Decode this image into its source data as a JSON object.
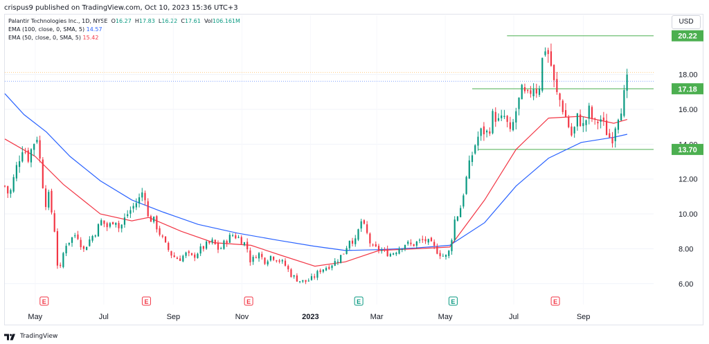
{
  "publisher": "crispus9 published on TradingView.com, Oct 10, 2023 15:36 UTC+3",
  "legend": {
    "title": "Palantir Technologies Inc., 1D, NYSE",
    "o_label": "O",
    "o_value": "16.27",
    "h_label": "H",
    "h_value": "17.83",
    "l_label": "L",
    "l_value": "16.22",
    "c_label": "C",
    "c_value": "17.61",
    "vol_label": "Vol",
    "vol_value": "106.161M",
    "ema100_label": "EMA (100, close, 0, SMA, 5)",
    "ema100_value": "14.57",
    "ema50_label": "EMA (50, close, 0, SMA, 5)",
    "ema50_value": "15.42"
  },
  "currency": "USD",
  "footer": {
    "logo_text": "TradingView"
  },
  "colors": {
    "up": "#089981",
    "down": "#f23645",
    "ema100": "#2962ff",
    "ema50": "#f23645",
    "level": "#4caf50",
    "earnings_up": "#089981",
    "earnings_down": "#f23645"
  },
  "chart_data": {
    "type": "candlestick",
    "y_axis": {
      "ticks": [
        6,
        8,
        10,
        12,
        14,
        16,
        18
      ],
      "tick_labels": [
        "6.00",
        "8.00",
        "10.00",
        "12.00",
        "14.00",
        "16.00",
        "18.00"
      ],
      "ylim": [
        4.8,
        21.4
      ]
    },
    "x_axis": {
      "labels": [
        "May",
        "Jul",
        "Sep",
        "Nov",
        "2023",
        "Mar",
        "May",
        "Jul",
        "Sep"
      ],
      "label_dates": [
        "2022-05-01",
        "2022-07-01",
        "2022-09-01",
        "2022-11-01",
        "2023-01-01",
        "2023-03-01",
        "2023-05-01",
        "2023-07-01",
        "2023-09-01"
      ],
      "range": [
        "2022-04-04",
        "2023-10-31"
      ]
    },
    "current_price": 17.61,
    "levels": [
      {
        "value": 20.22,
        "label": "20.22",
        "from": "2023-06-25",
        "to": "2023-10-31"
      },
      {
        "value": 17.18,
        "label": "17.18",
        "from": "2023-05-25",
        "to": "2023-10-31"
      },
      {
        "value": 13.7,
        "label": "13.70",
        "from": "2023-05-30",
        "to": "2023-10-31"
      }
    ],
    "earnings": [
      {
        "date": "2022-05-09",
        "label": "E",
        "type": "down"
      },
      {
        "date": "2022-08-08",
        "label": "E",
        "type": "down"
      },
      {
        "date": "2022-11-07",
        "label": "E",
        "type": "down"
      },
      {
        "date": "2023-02-13",
        "label": "E",
        "type": "up"
      },
      {
        "date": "2023-05-08",
        "label": "E",
        "type": "up"
      },
      {
        "date": "2023-08-07",
        "label": "E",
        "type": "down"
      }
    ],
    "price_path": [
      [
        "2022-04-04",
        11.6
      ],
      [
        "2022-04-08",
        11.0
      ],
      [
        "2022-04-14",
        12.6
      ],
      [
        "2022-04-20",
        13.9
      ],
      [
        "2022-04-25",
        13.2
      ],
      [
        "2022-04-29",
        14.0
      ],
      [
        "2022-05-03",
        14.5
      ],
      [
        "2022-05-06",
        12.6
      ],
      [
        "2022-05-10",
        10.6
      ],
      [
        "2022-05-13",
        11.0
      ],
      [
        "2022-05-18",
        9.3
      ],
      [
        "2022-05-20",
        7.2
      ],
      [
        "2022-05-24",
        6.8
      ],
      [
        "2022-05-27",
        8.2
      ],
      [
        "2022-06-01",
        8.5
      ],
      [
        "2022-06-07",
        8.9
      ],
      [
        "2022-06-13",
        7.9
      ],
      [
        "2022-06-17",
        8.4
      ],
      [
        "2022-06-23",
        8.9
      ],
      [
        "2022-06-29",
        9.6
      ],
      [
        "2022-07-05",
        9.2
      ],
      [
        "2022-07-11",
        9.8
      ],
      [
        "2022-07-15",
        9.1
      ],
      [
        "2022-07-21",
        9.9
      ],
      [
        "2022-07-27",
        10.4
      ],
      [
        "2022-08-02",
        10.9
      ],
      [
        "2022-08-06",
        11.5
      ],
      [
        "2022-08-09",
        9.8
      ],
      [
        "2022-08-15",
        9.6
      ],
      [
        "2022-08-19",
        9.0
      ],
      [
        "2022-08-25",
        8.2
      ],
      [
        "2022-08-31",
        7.6
      ],
      [
        "2022-09-06",
        7.4
      ],
      [
        "2022-09-12",
        7.7
      ],
      [
        "2022-09-18",
        7.5
      ],
      [
        "2022-09-24",
        7.9
      ],
      [
        "2022-09-30",
        8.2
      ],
      [
        "2022-10-06",
        8.4
      ],
      [
        "2022-10-12",
        7.9
      ],
      [
        "2022-10-18",
        8.5
      ],
      [
        "2022-10-24",
        8.8
      ],
      [
        "2022-10-30",
        8.6
      ],
      [
        "2022-11-05",
        8.2
      ],
      [
        "2022-11-09",
        7.2
      ],
      [
        "2022-11-15",
        7.8
      ],
      [
        "2022-11-21",
        7.3
      ],
      [
        "2022-11-27",
        7.6
      ],
      [
        "2022-12-03",
        7.4
      ],
      [
        "2022-12-09",
        7.1
      ],
      [
        "2022-12-15",
        6.5
      ],
      [
        "2022-12-21",
        6.2
      ],
      [
        "2022-12-27",
        6.1
      ],
      [
        "2023-01-03",
        6.3
      ],
      [
        "2023-01-10",
        6.8
      ],
      [
        "2023-01-17",
        7.0
      ],
      [
        "2023-01-24",
        7.3
      ],
      [
        "2023-01-31",
        7.8
      ],
      [
        "2023-02-05",
        8.6
      ],
      [
        "2023-02-10",
        8.4
      ],
      [
        "2023-02-15",
        9.6
      ],
      [
        "2023-02-20",
        8.9
      ],
      [
        "2023-02-25",
        8.0
      ],
      [
        "2023-03-02",
        8.0
      ],
      [
        "2023-03-08",
        7.8
      ],
      [
        "2023-03-14",
        7.7
      ],
      [
        "2023-03-20",
        8.0
      ],
      [
        "2023-03-26",
        8.3
      ],
      [
        "2023-04-01",
        8.2
      ],
      [
        "2023-04-07",
        8.4
      ],
      [
        "2023-04-13",
        8.5
      ],
      [
        "2023-04-19",
        8.2
      ],
      [
        "2023-04-25",
        7.8
      ],
      [
        "2023-05-01",
        7.5
      ],
      [
        "2023-05-05",
        7.9
      ],
      [
        "2023-05-09",
        9.6
      ],
      [
        "2023-05-14",
        10.2
      ],
      [
        "2023-05-19",
        11.8
      ],
      [
        "2023-05-24",
        13.2
      ],
      [
        "2023-05-29",
        14.3
      ],
      [
        "2023-06-03",
        14.8
      ],
      [
        "2023-06-08",
        14.6
      ],
      [
        "2023-06-13",
        15.8
      ],
      [
        "2023-06-18",
        15.2
      ],
      [
        "2023-06-23",
        15.6
      ],
      [
        "2023-06-28",
        14.5
      ],
      [
        "2023-07-03",
        15.9
      ],
      [
        "2023-07-08",
        17.0
      ],
      [
        "2023-07-13",
        16.6
      ],
      [
        "2023-07-18",
        17.4
      ],
      [
        "2023-07-23",
        17.0
      ],
      [
        "2023-07-28",
        19.7
      ],
      [
        "2023-08-02",
        19.0
      ],
      [
        "2023-08-07",
        17.0
      ],
      [
        "2023-08-12",
        16.4
      ],
      [
        "2023-08-17",
        15.4
      ],
      [
        "2023-08-22",
        14.4
      ],
      [
        "2023-08-27",
        15.6
      ],
      [
        "2023-09-01",
        15.0
      ],
      [
        "2023-09-06",
        15.9
      ],
      [
        "2023-09-11",
        15.1
      ],
      [
        "2023-09-16",
        15.5
      ],
      [
        "2023-09-21",
        14.8
      ],
      [
        "2023-09-26",
        14.2
      ],
      [
        "2023-10-01",
        15.6
      ],
      [
        "2023-10-06",
        16.4
      ],
      [
        "2023-10-10",
        17.61
      ]
    ],
    "ema100_path": [
      [
        "2022-04-04",
        16.9
      ],
      [
        "2022-04-21",
        15.7
      ],
      [
        "2022-05-11",
        14.7
      ],
      [
        "2022-06-01",
        13.3
      ],
      [
        "2022-06-28",
        11.9
      ],
      [
        "2022-07-26",
        10.8
      ],
      [
        "2022-08-23",
        10.1
      ],
      [
        "2022-09-23",
        9.4
      ],
      [
        "2022-10-28",
        8.9
      ],
      [
        "2022-12-02",
        8.5
      ],
      [
        "2023-01-04",
        8.15
      ],
      [
        "2023-02-01",
        7.9
      ],
      [
        "2023-03-03",
        7.95
      ],
      [
        "2023-04-05",
        8.05
      ],
      [
        "2023-05-05",
        8.2
      ],
      [
        "2023-06-05",
        9.5
      ],
      [
        "2023-07-03",
        11.6
      ],
      [
        "2023-08-01",
        13.2
      ],
      [
        "2023-08-30",
        14.1
      ],
      [
        "2023-09-28",
        14.4
      ],
      [
        "2023-10-10",
        14.57
      ]
    ],
    "ema50_path": [
      [
        "2022-04-04",
        14.3
      ],
      [
        "2022-05-01",
        13.3
      ],
      [
        "2022-05-26",
        11.7
      ],
      [
        "2022-06-28",
        10.0
      ],
      [
        "2022-07-26",
        9.6
      ],
      [
        "2022-08-10",
        9.8
      ],
      [
        "2022-09-08",
        9.0
      ],
      [
        "2022-10-07",
        8.35
      ],
      [
        "2022-11-09",
        8.2
      ],
      [
        "2022-12-07",
        7.6
      ],
      [
        "2023-01-05",
        7.0
      ],
      [
        "2023-02-01",
        7.25
      ],
      [
        "2023-03-03",
        7.9
      ],
      [
        "2023-04-05",
        8.0
      ],
      [
        "2023-05-05",
        8.1
      ],
      [
        "2023-06-05",
        10.8
      ],
      [
        "2023-07-03",
        13.7
      ],
      [
        "2023-08-01",
        15.5
      ],
      [
        "2023-08-30",
        15.6
      ],
      [
        "2023-09-28",
        15.2
      ],
      [
        "2023-10-10",
        15.42
      ]
    ]
  }
}
